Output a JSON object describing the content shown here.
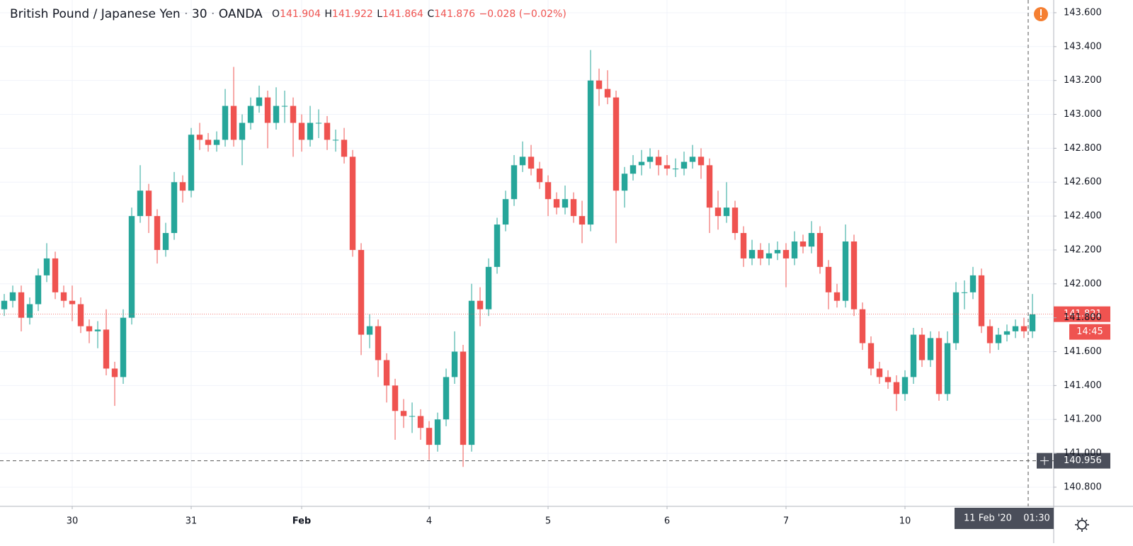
{
  "chart_data": {
    "type": "candlestick",
    "header": {
      "symbol": "British Pound / Japanese Yen",
      "interval": "30",
      "source": "OANDA",
      "separator": "·",
      "o_key": "O",
      "o": "141.904",
      "h_key": "H",
      "h": "141.922",
      "l_key": "L",
      "l": "141.864",
      "c_key": "C",
      "c": "141.876",
      "change": "−0.028 (−0.02%)"
    },
    "up_color": "#26a69a",
    "down_color": "#ef5350",
    "open": [
      141.85,
      141.9,
      141.95,
      141.8,
      141.88,
      142.05,
      142.15,
      141.95,
      141.9,
      141.88,
      141.75,
      141.72,
      141.73,
      141.5,
      141.45,
      141.8,
      142.4,
      142.55,
      142.4,
      142.2,
      142.3,
      142.6,
      142.55,
      142.88,
      142.85,
      142.82,
      142.85,
      143.05,
      142.85,
      142.95,
      143.05,
      143.1,
      142.95,
      143.05,
      143.05,
      142.95,
      142.85,
      142.95,
      142.95,
      142.85,
      142.85,
      142.75,
      142.2,
      141.7,
      141.75,
      141.55,
      141.4,
      141.25,
      141.22,
      141.22,
      141.15,
      141.05,
      141.2,
      141.45,
      141.6,
      141.05,
      141.9,
      141.85,
      142.1,
      142.35,
      142.5,
      142.7,
      142.75,
      142.68,
      142.6,
      142.5,
      142.45,
      142.5,
      142.4,
      142.35,
      143.2,
      143.15,
      143.1,
      142.55,
      142.65,
      142.7,
      142.72,
      142.75,
      142.7,
      142.68,
      142.68,
      142.72,
      142.75,
      142.7,
      142.45,
      142.4,
      142.45,
      142.3,
      142.15,
      142.2,
      142.15,
      142.18,
      142.2,
      142.15,
      142.25,
      142.22,
      142.3,
      142.1,
      141.95,
      141.9,
      142.25,
      141.85,
      141.65,
      141.5,
      141.45,
      141.42,
      141.35,
      141.45,
      141.7,
      141.55,
      141.68,
      141.35,
      141.65,
      141.95,
      141.95,
      142.05,
      141.75,
      141.65,
      141.7,
      141.72,
      141.75,
      141.72
    ],
    "high": [
      141.94,
      141.99,
      141.99,
      141.92,
      142.09,
      142.24,
      142.19,
      141.99,
      141.99,
      141.92,
      141.79,
      141.78,
      141.85,
      141.54,
      141.85,
      142.45,
      142.7,
      142.59,
      142.44,
      142.36,
      142.66,
      142.64,
      142.92,
      142.95,
      142.89,
      142.9,
      143.15,
      143.28,
      143.0,
      143.1,
      143.17,
      143.14,
      143.16,
      143.14,
      143.1,
      143.0,
      143.05,
      143.03,
      142.99,
      142.91,
      142.92,
      142.79,
      142.24,
      141.82,
      141.79,
      141.59,
      141.44,
      141.32,
      141.3,
      141.26,
      141.19,
      141.24,
      141.5,
      141.72,
      141.64,
      142.0,
      141.98,
      142.15,
      142.39,
      142.55,
      142.76,
      142.84,
      142.82,
      142.72,
      142.64,
      142.54,
      142.58,
      142.54,
      142.49,
      143.38,
      143.27,
      143.26,
      143.14,
      142.69,
      142.76,
      142.79,
      142.8,
      142.79,
      142.76,
      142.74,
      142.78,
      142.82,
      142.8,
      142.74,
      142.55,
      142.6,
      142.49,
      142.34,
      142.26,
      142.24,
      142.24,
      142.25,
      142.24,
      142.31,
      142.29,
      142.37,
      142.34,
      142.14,
      142.0,
      142.35,
      142.29,
      141.89,
      141.69,
      141.54,
      141.49,
      141.46,
      141.49,
      141.74,
      141.74,
      141.72,
      141.72,
      141.72,
      142.01,
      142.02,
      142.1,
      142.09,
      141.79,
      141.74,
      141.76,
      141.79,
      141.8,
      141.94
    ],
    "low": [
      141.81,
      141.86,
      141.72,
      141.76,
      141.84,
      142.01,
      141.91,
      141.86,
      141.78,
      141.71,
      141.65,
      141.62,
      141.46,
      141.28,
      141.41,
      141.76,
      142.36,
      142.3,
      142.12,
      142.16,
      142.26,
      142.48,
      142.51,
      142.79,
      142.78,
      142.78,
      142.81,
      142.81,
      142.7,
      142.91,
      143.01,
      142.8,
      142.91,
      142.95,
      142.75,
      142.78,
      142.81,
      142.86,
      142.79,
      142.78,
      142.71,
      142.16,
      141.58,
      141.62,
      141.45,
      141.3,
      141.08,
      141.15,
      141.12,
      141.08,
      140.96,
      141.01,
      141.16,
      141.41,
      140.92,
      141.01,
      141.75,
      141.81,
      142.06,
      142.31,
      142.46,
      142.66,
      142.64,
      142.56,
      142.4,
      142.41,
      142.41,
      142.36,
      142.24,
      142.31,
      143.05,
      143.06,
      142.24,
      142.45,
      142.61,
      142.64,
      142.68,
      142.64,
      142.64,
      142.63,
      142.64,
      142.68,
      142.62,
      142.3,
      142.32,
      142.36,
      142.26,
      142.1,
      142.11,
      142.11,
      142.11,
      142.14,
      141.98,
      142.11,
      142.18,
      142.18,
      142.06,
      141.85,
      141.86,
      141.86,
      141.81,
      141.61,
      141.46,
      141.41,
      141.38,
      141.25,
      141.31,
      141.41,
      141.51,
      141.51,
      141.31,
      141.31,
      141.61,
      141.85,
      141.91,
      141.71,
      141.59,
      141.61,
      141.66,
      141.68,
      141.68,
      141.68
    ],
    "close": [
      141.9,
      141.95,
      141.8,
      141.88,
      142.05,
      142.15,
      141.95,
      141.9,
      141.88,
      141.75,
      141.72,
      141.73,
      141.5,
      141.45,
      141.8,
      142.4,
      142.55,
      142.4,
      142.2,
      142.3,
      142.6,
      142.55,
      142.88,
      142.85,
      142.82,
      142.85,
      143.05,
      142.85,
      142.95,
      143.05,
      143.1,
      142.95,
      143.05,
      143.05,
      142.95,
      142.85,
      142.95,
      142.95,
      142.85,
      142.85,
      142.75,
      142.2,
      141.7,
      141.75,
      141.55,
      141.4,
      141.25,
      141.22,
      141.22,
      141.15,
      141.05,
      141.2,
      141.45,
      141.6,
      141.05,
      141.9,
      141.85,
      142.1,
      142.35,
      142.5,
      142.7,
      142.75,
      142.68,
      142.6,
      142.5,
      142.45,
      142.5,
      142.4,
      142.35,
      143.2,
      143.15,
      143.1,
      142.55,
      142.65,
      142.7,
      142.72,
      142.75,
      142.7,
      142.68,
      142.68,
      142.72,
      142.75,
      142.7,
      142.45,
      142.4,
      142.45,
      142.3,
      142.15,
      142.2,
      142.15,
      142.18,
      142.2,
      142.15,
      142.25,
      142.22,
      142.3,
      142.1,
      141.95,
      141.9,
      142.25,
      141.85,
      141.65,
      141.5,
      141.45,
      141.42,
      141.35,
      141.45,
      141.7,
      141.55,
      141.68,
      141.35,
      141.65,
      141.95,
      141.95,
      142.05,
      141.75,
      141.65,
      141.7,
      141.72,
      141.75,
      141.72,
      141.82
    ],
    "xlim": [
      -0.5,
      123.5
    ],
    "xticks": [
      {
        "value": 8,
        "label": "30"
      },
      {
        "value": 22,
        "label": "31"
      },
      {
        "value": 35,
        "label": "Feb"
      },
      {
        "value": 50,
        "label": "4"
      },
      {
        "value": 64,
        "label": "5"
      },
      {
        "value": 78,
        "label": "6"
      },
      {
        "value": 92,
        "label": "7"
      },
      {
        "value": 106,
        "label": "10"
      }
    ],
    "ylim": [
      140.687,
      143.675
    ],
    "yticks": [
      {
        "value": 140.8,
        "label": "140.800"
      },
      {
        "value": 141.0,
        "label": "141.000"
      },
      {
        "value": 141.2,
        "label": "141.200"
      },
      {
        "value": 141.4,
        "label": "141.400"
      },
      {
        "value": 141.6,
        "label": "141.600"
      },
      {
        "value": 141.8,
        "label": "141.800"
      },
      {
        "value": 142.0,
        "label": "142.000"
      },
      {
        "value": 142.2,
        "label": "142.200"
      },
      {
        "value": 142.4,
        "label": "142.400"
      },
      {
        "value": 142.6,
        "label": "142.600"
      },
      {
        "value": 142.8,
        "label": "142.800"
      },
      {
        "value": 143.0,
        "label": "143.000"
      },
      {
        "value": 143.2,
        "label": "143.200"
      },
      {
        "value": 143.4,
        "label": "143.400"
      },
      {
        "value": 143.6,
        "label": "143.600"
      }
    ],
    "grid": true,
    "last_price": 141.821,
    "countdown": "14:45",
    "crosshair": {
      "x": 120.5,
      "y": 140.956,
      "date_label": "11 Feb '20",
      "time_label": "01:30"
    }
  }
}
